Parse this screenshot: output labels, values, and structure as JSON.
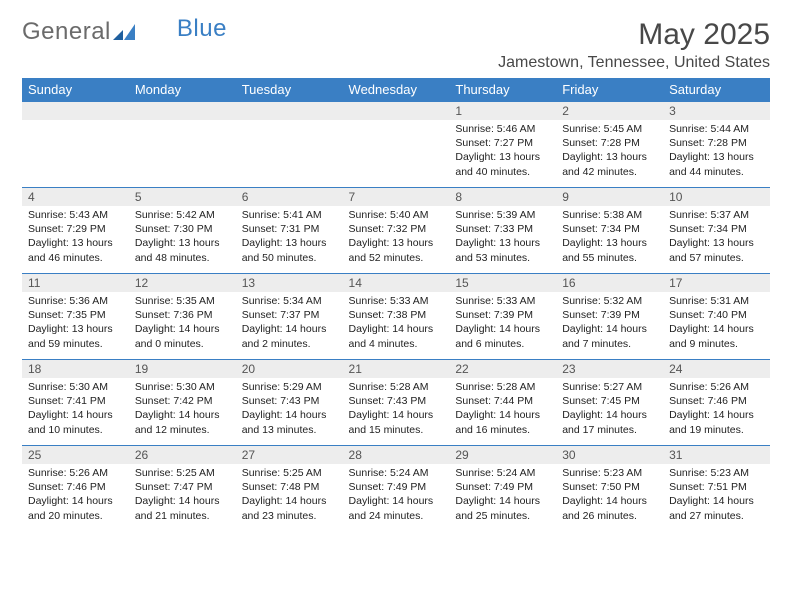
{
  "brand": {
    "part1": "General",
    "part2": "Blue"
  },
  "title": "May 2025",
  "location": "Jamestown, Tennessee, United States",
  "colors": {
    "header_bg": "#3a7fc4",
    "header_text": "#ffffff",
    "daynum_bg": "#ededed",
    "cell_border": "#3a7fc4",
    "page_bg": "#ffffff",
    "title_color": "#484848",
    "logo_gray": "#6b6b6b",
    "logo_blue": "#3a7fc4"
  },
  "weekdays": [
    "Sunday",
    "Monday",
    "Tuesday",
    "Wednesday",
    "Thursday",
    "Friday",
    "Saturday"
  ],
  "weeks": [
    [
      null,
      null,
      null,
      null,
      {
        "n": "1",
        "sr": "Sunrise: 5:46 AM",
        "ss": "Sunset: 7:27 PM",
        "d1": "Daylight: 13 hours",
        "d2": "and 40 minutes."
      },
      {
        "n": "2",
        "sr": "Sunrise: 5:45 AM",
        "ss": "Sunset: 7:28 PM",
        "d1": "Daylight: 13 hours",
        "d2": "and 42 minutes."
      },
      {
        "n": "3",
        "sr": "Sunrise: 5:44 AM",
        "ss": "Sunset: 7:28 PM",
        "d1": "Daylight: 13 hours",
        "d2": "and 44 minutes."
      }
    ],
    [
      {
        "n": "4",
        "sr": "Sunrise: 5:43 AM",
        "ss": "Sunset: 7:29 PM",
        "d1": "Daylight: 13 hours",
        "d2": "and 46 minutes."
      },
      {
        "n": "5",
        "sr": "Sunrise: 5:42 AM",
        "ss": "Sunset: 7:30 PM",
        "d1": "Daylight: 13 hours",
        "d2": "and 48 minutes."
      },
      {
        "n": "6",
        "sr": "Sunrise: 5:41 AM",
        "ss": "Sunset: 7:31 PM",
        "d1": "Daylight: 13 hours",
        "d2": "and 50 minutes."
      },
      {
        "n": "7",
        "sr": "Sunrise: 5:40 AM",
        "ss": "Sunset: 7:32 PM",
        "d1": "Daylight: 13 hours",
        "d2": "and 52 minutes."
      },
      {
        "n": "8",
        "sr": "Sunrise: 5:39 AM",
        "ss": "Sunset: 7:33 PM",
        "d1": "Daylight: 13 hours",
        "d2": "and 53 minutes."
      },
      {
        "n": "9",
        "sr": "Sunrise: 5:38 AM",
        "ss": "Sunset: 7:34 PM",
        "d1": "Daylight: 13 hours",
        "d2": "and 55 minutes."
      },
      {
        "n": "10",
        "sr": "Sunrise: 5:37 AM",
        "ss": "Sunset: 7:34 PM",
        "d1": "Daylight: 13 hours",
        "d2": "and 57 minutes."
      }
    ],
    [
      {
        "n": "11",
        "sr": "Sunrise: 5:36 AM",
        "ss": "Sunset: 7:35 PM",
        "d1": "Daylight: 13 hours",
        "d2": "and 59 minutes."
      },
      {
        "n": "12",
        "sr": "Sunrise: 5:35 AM",
        "ss": "Sunset: 7:36 PM",
        "d1": "Daylight: 14 hours",
        "d2": "and 0 minutes."
      },
      {
        "n": "13",
        "sr": "Sunrise: 5:34 AM",
        "ss": "Sunset: 7:37 PM",
        "d1": "Daylight: 14 hours",
        "d2": "and 2 minutes."
      },
      {
        "n": "14",
        "sr": "Sunrise: 5:33 AM",
        "ss": "Sunset: 7:38 PM",
        "d1": "Daylight: 14 hours",
        "d2": "and 4 minutes."
      },
      {
        "n": "15",
        "sr": "Sunrise: 5:33 AM",
        "ss": "Sunset: 7:39 PM",
        "d1": "Daylight: 14 hours",
        "d2": "and 6 minutes."
      },
      {
        "n": "16",
        "sr": "Sunrise: 5:32 AM",
        "ss": "Sunset: 7:39 PM",
        "d1": "Daylight: 14 hours",
        "d2": "and 7 minutes."
      },
      {
        "n": "17",
        "sr": "Sunrise: 5:31 AM",
        "ss": "Sunset: 7:40 PM",
        "d1": "Daylight: 14 hours",
        "d2": "and 9 minutes."
      }
    ],
    [
      {
        "n": "18",
        "sr": "Sunrise: 5:30 AM",
        "ss": "Sunset: 7:41 PM",
        "d1": "Daylight: 14 hours",
        "d2": "and 10 minutes."
      },
      {
        "n": "19",
        "sr": "Sunrise: 5:30 AM",
        "ss": "Sunset: 7:42 PM",
        "d1": "Daylight: 14 hours",
        "d2": "and 12 minutes."
      },
      {
        "n": "20",
        "sr": "Sunrise: 5:29 AM",
        "ss": "Sunset: 7:43 PM",
        "d1": "Daylight: 14 hours",
        "d2": "and 13 minutes."
      },
      {
        "n": "21",
        "sr": "Sunrise: 5:28 AM",
        "ss": "Sunset: 7:43 PM",
        "d1": "Daylight: 14 hours",
        "d2": "and 15 minutes."
      },
      {
        "n": "22",
        "sr": "Sunrise: 5:28 AM",
        "ss": "Sunset: 7:44 PM",
        "d1": "Daylight: 14 hours",
        "d2": "and 16 minutes."
      },
      {
        "n": "23",
        "sr": "Sunrise: 5:27 AM",
        "ss": "Sunset: 7:45 PM",
        "d1": "Daylight: 14 hours",
        "d2": "and 17 minutes."
      },
      {
        "n": "24",
        "sr": "Sunrise: 5:26 AM",
        "ss": "Sunset: 7:46 PM",
        "d1": "Daylight: 14 hours",
        "d2": "and 19 minutes."
      }
    ],
    [
      {
        "n": "25",
        "sr": "Sunrise: 5:26 AM",
        "ss": "Sunset: 7:46 PM",
        "d1": "Daylight: 14 hours",
        "d2": "and 20 minutes."
      },
      {
        "n": "26",
        "sr": "Sunrise: 5:25 AM",
        "ss": "Sunset: 7:47 PM",
        "d1": "Daylight: 14 hours",
        "d2": "and 21 minutes."
      },
      {
        "n": "27",
        "sr": "Sunrise: 5:25 AM",
        "ss": "Sunset: 7:48 PM",
        "d1": "Daylight: 14 hours",
        "d2": "and 23 minutes."
      },
      {
        "n": "28",
        "sr": "Sunrise: 5:24 AM",
        "ss": "Sunset: 7:49 PM",
        "d1": "Daylight: 14 hours",
        "d2": "and 24 minutes."
      },
      {
        "n": "29",
        "sr": "Sunrise: 5:24 AM",
        "ss": "Sunset: 7:49 PM",
        "d1": "Daylight: 14 hours",
        "d2": "and 25 minutes."
      },
      {
        "n": "30",
        "sr": "Sunrise: 5:23 AM",
        "ss": "Sunset: 7:50 PM",
        "d1": "Daylight: 14 hours",
        "d2": "and 26 minutes."
      },
      {
        "n": "31",
        "sr": "Sunrise: 5:23 AM",
        "ss": "Sunset: 7:51 PM",
        "d1": "Daylight: 14 hours",
        "d2": "and 27 minutes."
      }
    ]
  ]
}
